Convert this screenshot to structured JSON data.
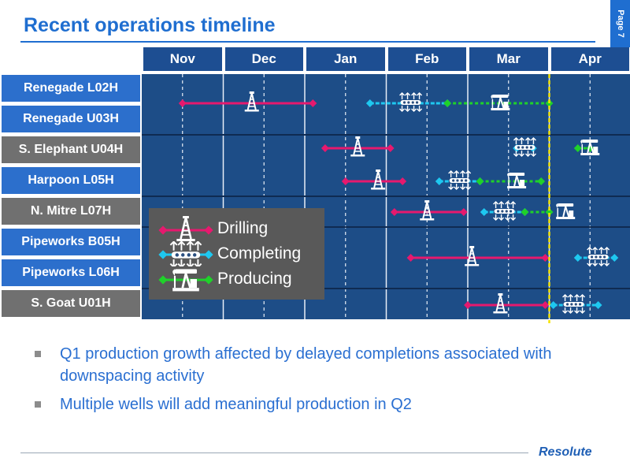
{
  "page": {
    "title": "Recent operations timeline",
    "page_label": "Page 7",
    "logo": "Resolute"
  },
  "timeline": {
    "months": [
      "Nov",
      "Dec",
      "Jan",
      "Feb",
      "Mar",
      "Apr"
    ],
    "wells": [
      {
        "name": "Renegade L02H",
        "style": "blue"
      },
      {
        "name": "Renegade U03H",
        "style": "blue"
      },
      {
        "name": "S. Elephant U04H",
        "style": "gray"
      },
      {
        "name": "Harpoon L05H",
        "style": "blue"
      },
      {
        "name": "N. Mitre L07H",
        "style": "gray"
      },
      {
        "name": "Pipeworks B05H",
        "style": "blue"
      },
      {
        "name": "Pipeworks L06H",
        "style": "blue"
      },
      {
        "name": "S. Goat U01H",
        "style": "gray"
      }
    ],
    "activities": [
      {
        "well": "Renegade L02H / Renegade U03H",
        "type": "drilling",
        "start": 0.5,
        "end": 2.1,
        "icon_at": 1.35
      },
      {
        "well": "Renegade L02H / Renegade U03H",
        "type": "completing",
        "start": 2.8,
        "end": 3.75,
        "icon_at": 3.3
      },
      {
        "well": "Renegade L02H / Renegade U03H",
        "type": "producing",
        "start": 3.75,
        "end": 5.0,
        "icon_at": 4.4
      },
      {
        "well": "S. Elephant U04H",
        "type": "drilling",
        "start": 2.25,
        "end": 3.05,
        "icon_at": 2.65
      },
      {
        "well": "S. Elephant U04H",
        "type": "completing",
        "start": 4.6,
        "end": 4.8,
        "icon_at": 4.7
      },
      {
        "well": "S. Elephant U04H",
        "type": "producing",
        "start": 5.35,
        "end": 5.5,
        "icon_at": 5.5
      },
      {
        "well": "Harpoon L05H",
        "type": "drilling",
        "start": 2.5,
        "end": 3.2,
        "icon_at": 2.9
      },
      {
        "well": "Harpoon L05H",
        "type": "completing",
        "start": 3.65,
        "end": 4.15,
        "icon_at": 3.9
      },
      {
        "well": "Harpoon L05H",
        "type": "producing",
        "start": 4.15,
        "end": 4.9,
        "icon_at": 4.6
      },
      {
        "well": "N. Mitre L07H",
        "type": "drilling",
        "start": 3.1,
        "end": 3.95,
        "icon_at": 3.5
      },
      {
        "well": "N. Mitre L07H",
        "type": "completing",
        "start": 4.2,
        "end": 4.7,
        "icon_at": 4.45
      },
      {
        "well": "N. Mitre L07H",
        "type": "producing",
        "start": 4.7,
        "end": 5.0,
        "icon_at": 5.2
      },
      {
        "well": "Pipeworks B05H / Pipeworks L06H",
        "type": "drilling",
        "start": 3.3,
        "end": 4.95,
        "icon_at": 4.05
      },
      {
        "well": "Pipeworks B05H / Pipeworks L06H",
        "type": "completing",
        "start": 5.35,
        "end": 5.8,
        "icon_at": 5.6
      },
      {
        "well": "S. Goat U01H",
        "type": "drilling",
        "start": 4.0,
        "end": 4.95,
        "icon_at": 4.4
      },
      {
        "well": "S. Goat U01H",
        "type": "completing",
        "start": 5.05,
        "end": 5.6,
        "icon_at": 5.3
      }
    ],
    "legend": [
      {
        "type": "drilling",
        "label": "Drilling",
        "color": "#e6196e"
      },
      {
        "type": "completing",
        "label": "Completing",
        "color": "#1ec8f0"
      },
      {
        "type": "producing",
        "label": "Producing",
        "color": "#1fd12a"
      }
    ],
    "today_marker_month": 5.0,
    "today_marker_color": "#f5e400"
  },
  "bullets": [
    "Q1 production growth affected by delayed completions associated with downspacing activity",
    "Multiple wells will add meaningful production in Q2"
  ]
}
